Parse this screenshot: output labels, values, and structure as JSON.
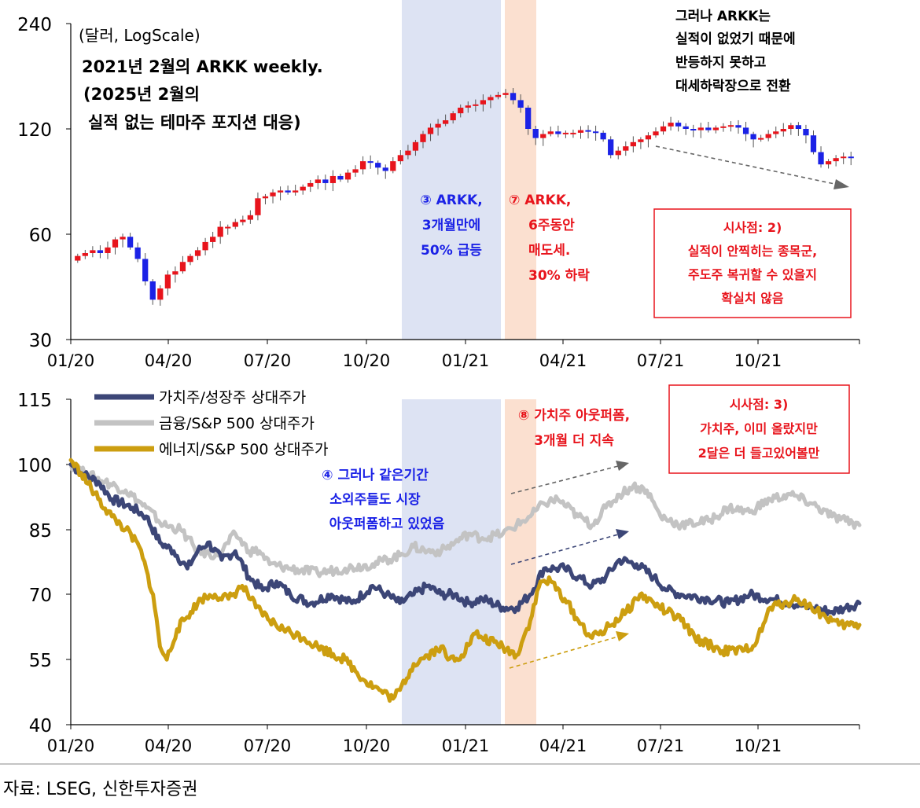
{
  "source": "자료: LSEG, 신한투자증권",
  "colors": {
    "up": "#e8141c",
    "down": "#1b22e6",
    "band_blue": "#dde3f3",
    "band_orange": "#fbe0d0",
    "value": "#3c4677",
    "finance": "#c3c3c3",
    "energy": "#cc9e10",
    "red_text": "#e8141c",
    "blue_text": "#1b22e6",
    "arrow_gray": "#666666",
    "arrow_navy": "#3c4677",
    "arrow_gold": "#cc9e10"
  },
  "x_ticks": [
    "01/20",
    "04/20",
    "07/20",
    "10/20",
    "01/21",
    "04/21",
    "07/21",
    "10/21"
  ],
  "top": {
    "unit_label": "(달러, LogScale)",
    "title_lines": [
      "2021년 2월의 ARKK weekly.",
      "(2025년 2월의",
      "실적 없는 테마주 포지션 대응)"
    ],
    "y_ticks": [
      "240",
      "120",
      "60",
      "30"
    ],
    "note_top_right": [
      "그러나 ARKK는",
      "실적이 없었기 때문에",
      "반등하지 못하고",
      "대세하락장으로 전환"
    ],
    "note_3": [
      "③ ARKK,",
      "3개월만에",
      "50% 급등"
    ],
    "note_7": [
      "⑦ ARKK,",
      "6주동안",
      "매도세.",
      "30% 하락"
    ],
    "box2": [
      "시사점: 2)",
      "실적이 안찍히는 종목군,",
      "주도주 복귀할 수 있을지",
      "확실치 않음"
    ]
  },
  "bottom": {
    "y_ticks": [
      "115",
      "100",
      "85",
      "70",
      "55",
      "40"
    ],
    "legend": [
      "가치주/성장주 상대주가",
      "금융/S&P 500 상대주가",
      "에너지/S&P 500 상대주가"
    ],
    "note_4": [
      "④ 그러나 같은기간",
      "소외주들도 시장",
      "아웃퍼폼하고 있었음"
    ],
    "note_8": [
      "⑧ 가치주 아웃퍼폼,",
      "3개월 더 지속"
    ],
    "box3": [
      "시사점: 3)",
      "가치주, 이미 올랐지만",
      "2달은 더 들고있어볼만"
    ]
  },
  "chart_data": [
    {
      "type": "candlestick",
      "title": "2021년 2월의 ARKK weekly.",
      "ylabel": "(달러, LogScale)",
      "y_scale": "log",
      "ylim": [
        30,
        240
      ],
      "x_range": [
        "2020-01",
        "2021-12"
      ],
      "highlight_periods": [
        {
          "from": "2020-11",
          "to": "2021-02",
          "color": "blue"
        },
        {
          "from": "2021-02",
          "to": "2021-03",
          "color": "orange"
        }
      ],
      "weekly_close_approx": [
        52,
        53,
        54,
        53,
        55,
        58,
        59,
        55,
        51,
        44,
        39,
        42,
        46,
        47,
        50,
        52,
        54,
        57,
        59,
        63,
        63,
        65,
        66,
        68,
        76,
        77,
        79,
        80,
        79,
        80,
        82,
        84,
        86,
        84,
        88,
        86,
        90,
        92,
        97,
        96,
        93,
        91,
        97,
        101,
        104,
        110,
        116,
        121,
        124,
        127,
        133,
        138,
        140,
        141,
        145,
        148,
        150,
        152,
        145,
        138,
        120,
        113,
        116,
        118,
        116,
        117,
        117,
        119,
        118,
        117,
        112,
        101,
        104,
        107,
        110,
        112,
        115,
        118,
        122,
        125,
        122,
        120,
        119,
        121,
        119,
        121,
        122,
        123,
        121,
        116,
        112,
        113,
        116,
        118,
        120,
        123,
        120,
        115,
        103,
        95,
        97,
        99,
        100,
        99
      ]
    },
    {
      "type": "line",
      "ylim": [
        40,
        115
      ],
      "x_range": [
        "2020-01",
        "2021-12"
      ],
      "series": [
        {
          "name": "가치주/성장주 상대주가",
          "points": [
            [
              0,
              100
            ],
            [
              3,
              98
            ],
            [
              8,
              96
            ],
            [
              12,
              92
            ],
            [
              18,
              90
            ],
            [
              22,
              88
            ],
            [
              26,
              82
            ],
            [
              30,
              80
            ],
            [
              34,
              76
            ],
            [
              37,
              80
            ],
            [
              40,
              82
            ],
            [
              44,
              78
            ],
            [
              48,
              80
            ],
            [
              52,
              74
            ],
            [
              56,
              71
            ],
            [
              60,
              73
            ],
            [
              64,
              70
            ],
            [
              70,
              68
            ],
            [
              76,
              70
            ],
            [
              82,
              68
            ],
            [
              88,
              72
            ],
            [
              92,
              70
            ],
            [
              96,
              68
            ],
            [
              100,
              70
            ],
            [
              104,
              72
            ],
            [
              108,
              70
            ],
            [
              112,
              70
            ],
            [
              116,
              68
            ],
            [
              120,
              69
            ],
            [
              126,
              67
            ],
            [
              130,
              67
            ],
            [
              134,
              70
            ],
            [
              138,
              76
            ],
            [
              141,
              76
            ],
            [
              144,
              76
            ],
            [
              148,
              74
            ],
            [
              152,
              72
            ],
            [
              156,
              74
            ],
            [
              160,
              78
            ],
            [
              165,
              77
            ],
            [
              170,
              74
            ],
            [
              174,
              71
            ],
            [
              178,
              70
            ],
            [
              186,
              69
            ],
            [
              192,
              68
            ],
            [
              198,
              70
            ],
            [
              204,
              69
            ],
            [
              210,
              68
            ],
            [
              216,
              67
            ],
            [
              222,
              66
            ],
            [
              226,
              67
            ],
            [
              230,
              68
            ]
          ]
        },
        {
          "name": "금융/S&P 500 상대주가",
          "points": [
            [
              0,
              100
            ],
            [
              4,
              98
            ],
            [
              10,
              96
            ],
            [
              16,
              94
            ],
            [
              22,
              90
            ],
            [
              27,
              86
            ],
            [
              32,
              85
            ],
            [
              37,
              80
            ],
            [
              43,
              79
            ],
            [
              48,
              84
            ],
            [
              52,
              80
            ],
            [
              55,
              80
            ],
            [
              58,
              77
            ],
            [
              64,
              76
            ],
            [
              72,
              75
            ],
            [
              80,
              76
            ],
            [
              88,
              77
            ],
            [
              96,
              79
            ],
            [
              100,
              81
            ],
            [
              104,
              80
            ],
            [
              108,
              80
            ],
            [
              112,
              82
            ],
            [
              116,
              84
            ],
            [
              120,
              83
            ],
            [
              126,
              84
            ],
            [
              130,
              86
            ],
            [
              134,
              88
            ],
            [
              138,
              91
            ],
            [
              142,
              92
            ],
            [
              148,
              88
            ],
            [
              152,
              86
            ],
            [
              156,
              90
            ],
            [
              160,
              93
            ],
            [
              164,
              95
            ],
            [
              168,
              94
            ],
            [
              172,
              88
            ],
            [
              178,
              86
            ],
            [
              186,
              87
            ],
            [
              192,
              90
            ],
            [
              198,
              89
            ],
            [
              204,
              92
            ],
            [
              210,
              93
            ],
            [
              216,
              91
            ],
            [
              222,
              88
            ],
            [
              226,
              87
            ],
            [
              230,
              86
            ]
          ]
        },
        {
          "name": "에너지/S&P 500 상대주가",
          "points": [
            [
              0,
              101
            ],
            [
              3,
              98
            ],
            [
              8,
              92
            ],
            [
              12,
              88
            ],
            [
              16,
              85
            ],
            [
              20,
              81
            ],
            [
              24,
              70
            ],
            [
              26,
              58
            ],
            [
              28,
              55
            ],
            [
              31,
              62
            ],
            [
              35,
              66
            ],
            [
              38,
              69
            ],
            [
              42,
              70
            ],
            [
              46,
              69
            ],
            [
              50,
              72
            ],
            [
              54,
              67
            ],
            [
              58,
              64
            ],
            [
              62,
              62
            ],
            [
              68,
              60
            ],
            [
              72,
              58
            ],
            [
              80,
              55
            ],
            [
              86,
              50
            ],
            [
              90,
              48
            ],
            [
              94,
              46
            ],
            [
              96,
              48
            ],
            [
              100,
              54
            ],
            [
              104,
              56
            ],
            [
              108,
              58
            ],
            [
              110,
              55
            ],
            [
              114,
              56
            ],
            [
              118,
              61
            ],
            [
              120,
              60
            ],
            [
              126,
              58
            ],
            [
              130,
              56
            ],
            [
              134,
              64
            ],
            [
              137,
              73
            ],
            [
              140,
              73
            ],
            [
              144,
              69
            ],
            [
              148,
              64
            ],
            [
              152,
              60
            ],
            [
              156,
              62
            ],
            [
              162,
              66
            ],
            [
              166,
              70
            ],
            [
              170,
              68
            ],
            [
              174,
              66
            ],
            [
              178,
              64
            ],
            [
              182,
              60
            ],
            [
              190,
              57
            ],
            [
              196,
              57
            ],
            [
              200,
              59
            ],
            [
              204,
              67
            ],
            [
              208,
              68
            ],
            [
              212,
              69
            ],
            [
              216,
              67
            ],
            [
              220,
              65
            ],
            [
              224,
              63
            ],
            [
              230,
              63
            ]
          ]
        }
      ]
    }
  ]
}
